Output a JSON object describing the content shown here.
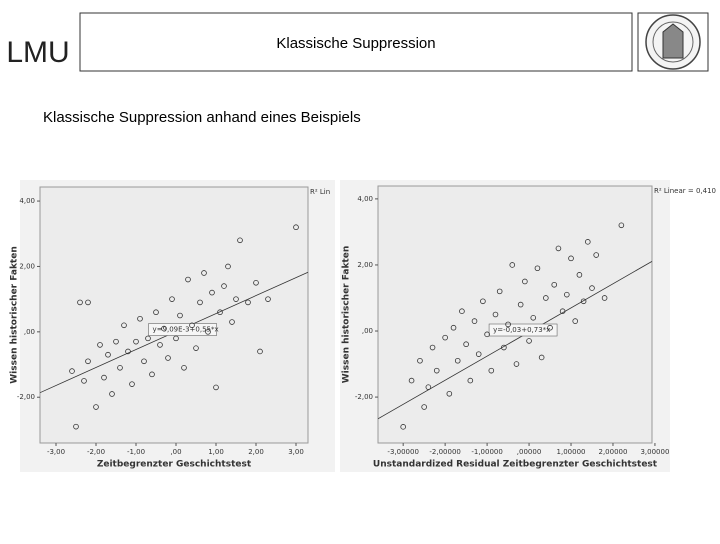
{
  "header": {
    "logo": "LMU",
    "title": "Klassische Suppression",
    "subtitle": "Klassische Suppression anhand eines Beispiels"
  },
  "chart_data": [
    {
      "type": "scatter",
      "x_label": "Zeitbegrenzter Geschichtstest",
      "y_label": "Wissen historischer Fakten",
      "annotation": "R² Lin",
      "fit": {
        "intercept": 0.00909,
        "slope": 0.55,
        "label": "y=9,09E-3+0,55*x"
      },
      "x": [
        -2.6,
        -2.5,
        -2.3,
        -2.2,
        -2.0,
        -1.9,
        -1.8,
        -1.7,
        -1.6,
        -1.5,
        -1.4,
        -1.3,
        -1.2,
        -1.1,
        -1.0,
        -0.9,
        -0.8,
        -0.7,
        -0.6,
        -0.5,
        -0.4,
        -0.3,
        -0.2,
        -0.1,
        0.0,
        0.1,
        0.2,
        0.3,
        0.4,
        0.5,
        0.6,
        0.7,
        0.8,
        0.9,
        1.0,
        1.1,
        1.2,
        1.3,
        1.4,
        1.5,
        1.6,
        1.8,
        2.0,
        2.1,
        2.3,
        3.0,
        -2.4,
        -2.2
      ],
      "y": [
        -1.2,
        -2.9,
        -1.5,
        -0.9,
        -2.3,
        -0.4,
        -1.4,
        -0.7,
        -1.9,
        -0.3,
        -1.1,
        0.2,
        -0.6,
        -1.6,
        -0.3,
        0.4,
        -0.9,
        -0.2,
        -1.3,
        0.6,
        -0.4,
        0.1,
        -0.8,
        1.0,
        -0.2,
        0.5,
        -1.1,
        1.6,
        0.2,
        -0.5,
        0.9,
        1.8,
        0.0,
        1.2,
        -1.7,
        0.6,
        1.4,
        2.0,
        0.3,
        1.0,
        2.8,
        0.9,
        1.5,
        -0.6,
        1.0,
        3.2,
        0.9,
        0.9
      ],
      "xlim": [
        -3.4,
        3.3
      ],
      "ylim": [
        -3.4,
        4.43
      ],
      "xticks": [
        {
          "value": -3,
          "label": "-3,00"
        },
        {
          "value": -2,
          "label": "-2,00"
        },
        {
          "value": -1,
          "label": "-1,00"
        },
        {
          "value": 0,
          "label": ",00"
        },
        {
          "value": 1,
          "label": "1,00"
        },
        {
          "value": 2,
          "label": "2,00"
        },
        {
          "value": 3,
          "label": "3,00"
        }
      ],
      "yticks": [
        {
          "value": -2,
          "label": "-2,00"
        },
        {
          "value": 0,
          "label": ",00"
        },
        {
          "value": 2,
          "label": "2,00"
        },
        {
          "value": 4,
          "label": "4,00"
        }
      ]
    },
    {
      "type": "scatter",
      "x_label": "Unstandardized Residual Zeitbegrenzter Geschichtstest",
      "y_label": "Wissen historischer Fakten",
      "annotation": "R² Linear = 0,410",
      "fit": {
        "intercept": -0.03,
        "slope": 0.73,
        "label": "y=-0,03+0,73*x"
      },
      "x": [
        -3.0,
        -2.8,
        -2.6,
        -2.5,
        -2.3,
        -2.2,
        -2.0,
        -1.9,
        -1.8,
        -1.7,
        -1.6,
        -1.5,
        -1.4,
        -1.3,
        -1.2,
        -1.1,
        -1.0,
        -0.9,
        -0.8,
        -0.7,
        -0.6,
        -0.5,
        -0.4,
        -0.3,
        -0.2,
        -0.1,
        0.0,
        0.1,
        0.2,
        0.3,
        0.4,
        0.5,
        0.6,
        0.7,
        0.8,
        0.9,
        1.0,
        1.1,
        1.2,
        1.3,
        1.4,
        1.5,
        1.6,
        1.8,
        2.2,
        -2.4
      ],
      "y": [
        -2.9,
        -1.5,
        -0.9,
        -2.3,
        -0.5,
        -1.2,
        -0.2,
        -1.9,
        0.1,
        -0.9,
        0.6,
        -0.4,
        -1.5,
        0.3,
        -0.7,
        0.9,
        -0.1,
        -1.2,
        0.5,
        1.2,
        -0.5,
        0.2,
        2.0,
        -1.0,
        0.8,
        1.5,
        -0.3,
        0.4,
        1.9,
        -0.8,
        1.0,
        0.1,
        1.4,
        2.5,
        0.6,
        1.1,
        2.2,
        0.3,
        1.7,
        0.9,
        2.7,
        1.3,
        2.3,
        1.0,
        3.2,
        -1.7
      ],
      "xlim": [
        -3.6,
        2.93
      ],
      "ylim": [
        -3.39,
        4.39
      ],
      "xticks": [
        {
          "value": -3,
          "label": "-3,00000"
        },
        {
          "value": -2,
          "label": "-2,00000"
        },
        {
          "value": -1,
          "label": "-1,00000"
        },
        {
          "value": 0,
          "label": ",00000"
        },
        {
          "value": 1,
          "label": "1,00000"
        },
        {
          "value": 2,
          "label": "2,00000"
        },
        {
          "value": 3,
          "label": "3,00000"
        }
      ],
      "yticks": [
        {
          "value": -2,
          "label": "-2,00"
        },
        {
          "value": 0,
          "label": ",00"
        },
        {
          "value": 2,
          "label": "2,00"
        },
        {
          "value": 4,
          "label": "4,00"
        }
      ]
    }
  ]
}
